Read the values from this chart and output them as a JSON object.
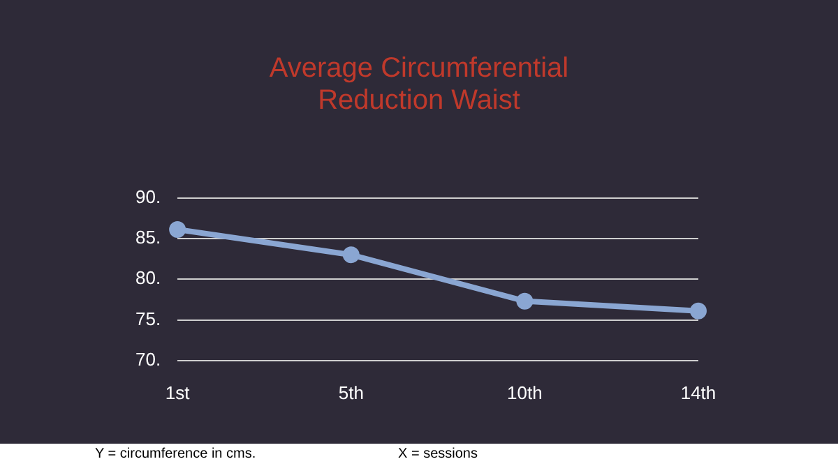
{
  "chart_data": {
    "type": "line",
    "title": "Average Circumferential Reduction Waist",
    "categories": [
      "1st",
      "5th",
      "10th",
      "14th"
    ],
    "series": [
      {
        "color": "#8aa6d2",
        "values": [
          86.1,
          83,
          77.3,
          76.1
        ]
      }
    ],
    "ylim": [
      70,
      90
    ],
    "yticks": [
      {
        "value": 70,
        "label": "70."
      },
      {
        "value": 75,
        "label": "75."
      },
      {
        "value": 80,
        "label": "80."
      },
      {
        "value": 85,
        "label": "85."
      },
      {
        "value": 90,
        "label": "90."
      }
    ],
    "grid": "y",
    "marker": "circle",
    "line_style": "solid",
    "legend": false,
    "annotations": [
      "Y = circumference in cms.",
      "X = sessions"
    ]
  }
}
